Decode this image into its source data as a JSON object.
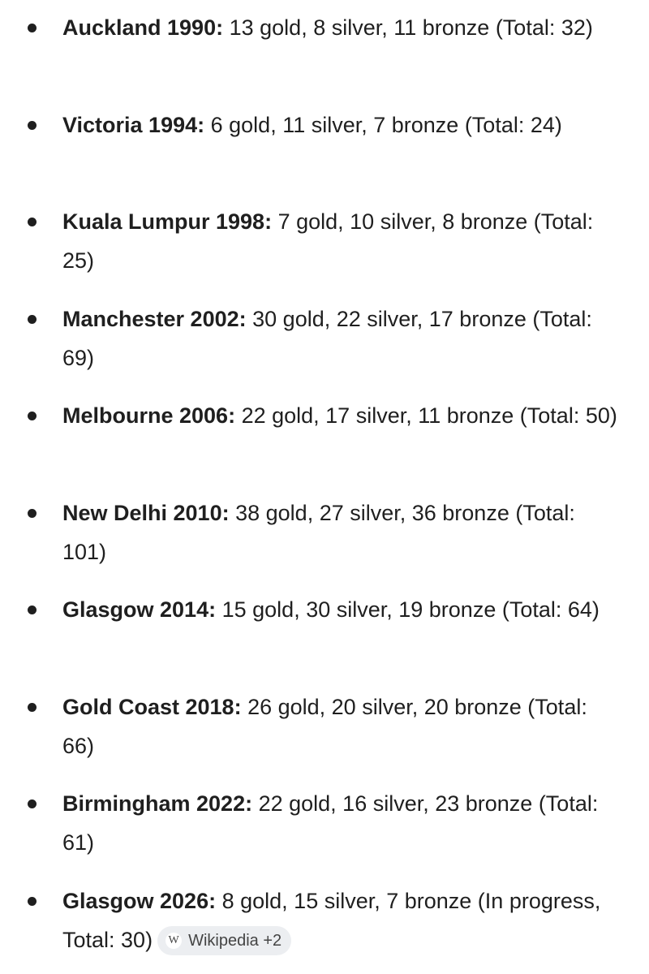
{
  "items": [
    {
      "label": "Auckland 1990:",
      "text": "13 gold, 8 silver, 11 bronze (Total: 32)"
    },
    {
      "label": "Victoria 1994:",
      "text": "6 gold, 11 silver, 7 bronze (Total: 24)"
    },
    {
      "label": "Kuala Lumpur 1998:",
      "text": "7 gold, 10 silver, 8 bronze (Total: 25)"
    },
    {
      "label": "Manchester 2002:",
      "text": "30 gold, 22 silver, 17 bronze (Total: 69)"
    },
    {
      "label": "Melbourne 2006:",
      "text": "22 gold, 17 silver, 11 bronze (Total: 50)"
    },
    {
      "label": "New Delhi 2010:",
      "text": "38 gold, 27 silver, 36 bronze (Total: 101)"
    },
    {
      "label": "Glasgow 2014:",
      "text": "15 gold, 30 silver, 19 bronze (Total: 64)"
    },
    {
      "label": "Gold Coast 2018:",
      "text": "26 gold, 20 silver, 20 bronze (Total: 66)"
    },
    {
      "label": "Birmingham 2022:",
      "text": "22 gold, 16 silver, 23 bronze (Total: 61)"
    },
    {
      "label": "Glasgow 2026:",
      "text": "8 gold, 15 silver, 7 bronze (In progress, Total: 30)",
      "source_chip": {
        "icon": "W",
        "label": "Wikipedia +2"
      }
    }
  ]
}
